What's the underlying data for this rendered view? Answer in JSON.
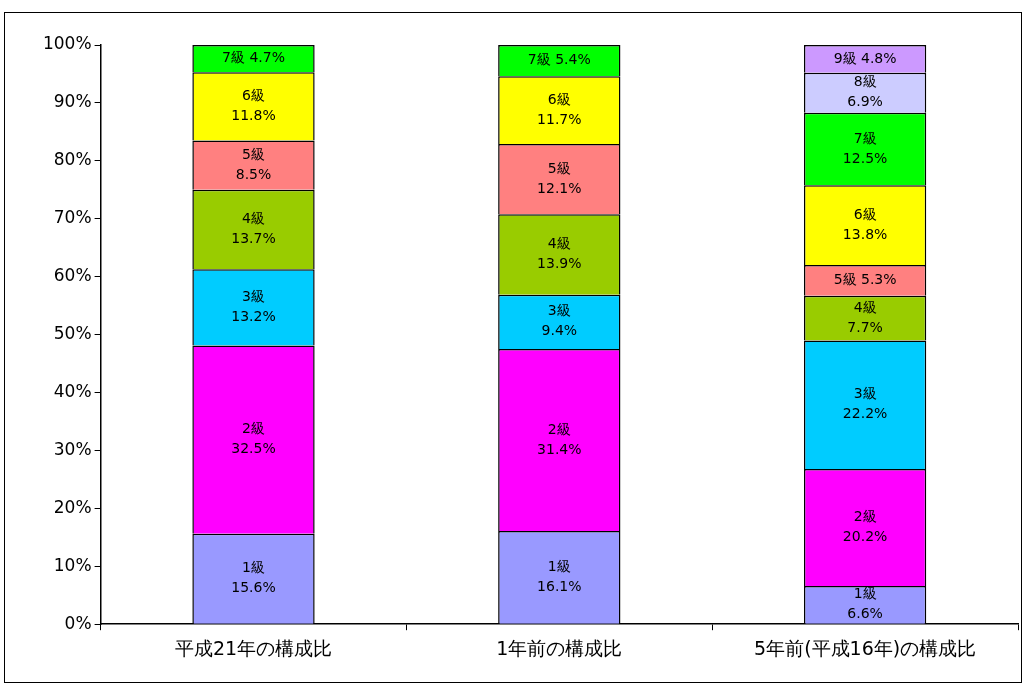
{
  "chart_data": {
    "type": "bar",
    "stacked": true,
    "categories": [
      "平成21年の構成比",
      "1年前の構成比",
      "5年前(平成16年)の構成比"
    ],
    "ylim": [
      0,
      100
    ],
    "yticks": [
      {
        "value": 0,
        "label": "0%"
      },
      {
        "value": 10,
        "label": "10%"
      },
      {
        "value": 20,
        "label": "20%"
      },
      {
        "value": 30,
        "label": "30%"
      },
      {
        "value": 40,
        "label": "40%"
      },
      {
        "value": 50,
        "label": "50%"
      },
      {
        "value": 60,
        "label": "60%"
      },
      {
        "value": 70,
        "label": "70%"
      },
      {
        "value": 80,
        "label": "80%"
      },
      {
        "value": 90,
        "label": "90%"
      },
      {
        "value": 100,
        "label": "100%"
      }
    ],
    "grid": false,
    "legend": false,
    "series": [
      {
        "name": "1級",
        "color": "#9999ff",
        "values": [
          15.6,
          16.1,
          6.6
        ],
        "value_labels": [
          "15.6%",
          "16.1%",
          "6.6%"
        ]
      },
      {
        "name": "2級",
        "color": "#ff00ff",
        "values": [
          32.5,
          31.4,
          20.2
        ],
        "value_labels": [
          "32.5%",
          "31.4%",
          "20.2%"
        ]
      },
      {
        "name": "3級",
        "color": "#00ccff",
        "values": [
          13.2,
          9.4,
          22.2
        ],
        "value_labels": [
          "13.2%",
          "9.4%",
          "22.2%"
        ]
      },
      {
        "name": "4級",
        "color": "#99cc00",
        "values": [
          13.7,
          13.9,
          7.7
        ],
        "value_labels": [
          "13.7%",
          "13.9%",
          "7.7%"
        ]
      },
      {
        "name": "5級",
        "color": "#ff8080",
        "values": [
          8.5,
          12.1,
          5.3
        ],
        "value_labels": [
          "8.5%",
          "12.1%",
          "5.3%"
        ]
      },
      {
        "name": "6級",
        "color": "#ffff00",
        "values": [
          11.8,
          11.7,
          13.8
        ],
        "value_labels": [
          "11.8%",
          "11.7%",
          "13.8%"
        ]
      },
      {
        "name": "7級",
        "color": "#00ff00",
        "values": [
          4.7,
          5.4,
          12.5
        ],
        "value_labels": [
          "4.7%",
          "5.4%",
          "12.5%"
        ]
      },
      {
        "name": "8級",
        "color": "#ccccff",
        "values": [
          null,
          null,
          6.9
        ],
        "value_labels": [
          null,
          null,
          "6.9%"
        ]
      },
      {
        "name": "9級",
        "color": "#cc99ff",
        "values": [
          null,
          null,
          4.8
        ],
        "value_labels": [
          null,
          null,
          "4.8%"
        ]
      }
    ]
  }
}
